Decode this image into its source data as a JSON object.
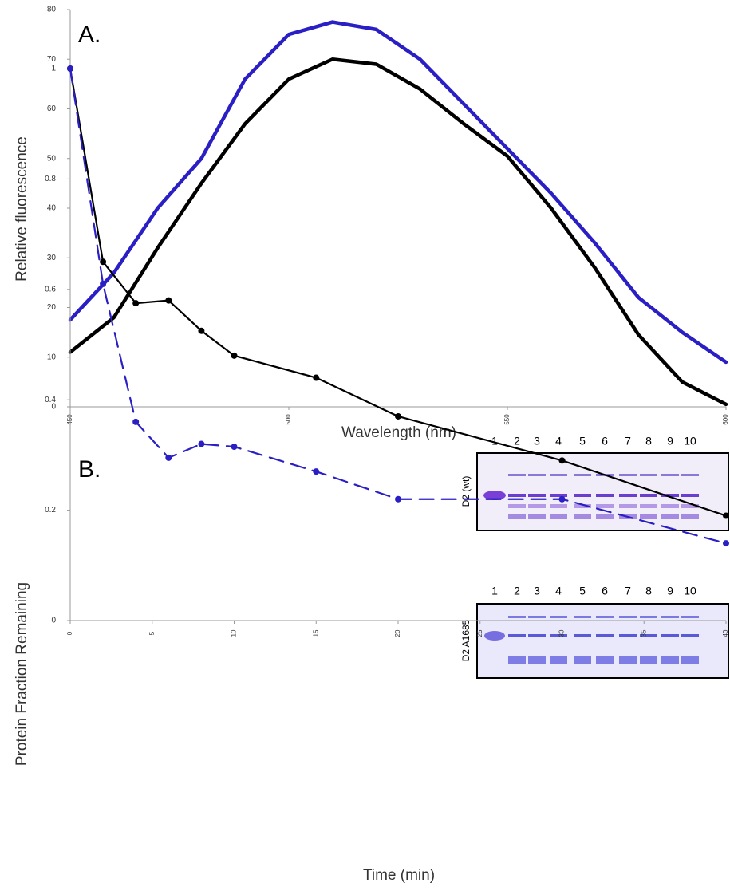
{
  "chart_data": [
    {
      "type": "line",
      "annotation": "A.",
      "ylabel": "Relative fluorescence",
      "xlabel": "Wavelength (nm)",
      "x": [
        450,
        460,
        470,
        480,
        490,
        500,
        510,
        520,
        530,
        540,
        550,
        560,
        570,
        580,
        590,
        600
      ],
      "series": [
        {
          "color": "#2a1fc4",
          "values": [
            17.5,
            27,
            40,
            50,
            66,
            75,
            77.5,
            76,
            70,
            61,
            52,
            43,
            33,
            22,
            15,
            9
          ]
        },
        {
          "color": "#000000",
          "values": [
            11,
            18,
            32,
            45,
            57,
            66,
            70,
            69,
            64,
            57,
            50.5,
            40,
            28,
            14.5,
            5,
            0.5
          ]
        }
      ],
      "xlim": [
        450,
        600
      ],
      "xticks": [
        450,
        500,
        550,
        600
      ],
      "ylim": [
        0,
        80
      ],
      "yticks": [
        0,
        10,
        20,
        30,
        40,
        50,
        60,
        70,
        80
      ]
    },
    {
      "type": "line",
      "annotation": "B.",
      "ylabel": "Protein Fraction Remaining",
      "xlabel": "Time (min)",
      "x": [
        0,
        2,
        4,
        6,
        8,
        10,
        15,
        20,
        30,
        40
      ],
      "series": [
        {
          "color": "#000000",
          "dash": false,
          "values": [
            1,
            0.65,
            0.575,
            0.58,
            0.525,
            0.48,
            0.44,
            0.37,
            0.29,
            0.19
          ]
        },
        {
          "color": "#2a1fc4",
          "dash": true,
          "values": [
            1,
            0.61,
            0.36,
            0.295,
            0.32,
            0.315,
            0.27,
            0.22,
            0.22,
            0.14
          ]
        }
      ],
      "xlim": [
        0,
        40
      ],
      "xticks": [
        0,
        5,
        10,
        15,
        20,
        25,
        30,
        35,
        40
      ],
      "ylim": [
        0,
        1
      ],
      "yticks": [
        0,
        0.2,
        0.4,
        0.6,
        0.8,
        1
      ]
    }
  ],
  "inset": {
    "lanes": [
      "1",
      "2",
      "3",
      "4",
      "5",
      "6",
      "7",
      "8",
      "9",
      "10"
    ],
    "panels": [
      "D2 (wt)",
      "D2 A1685"
    ]
  }
}
